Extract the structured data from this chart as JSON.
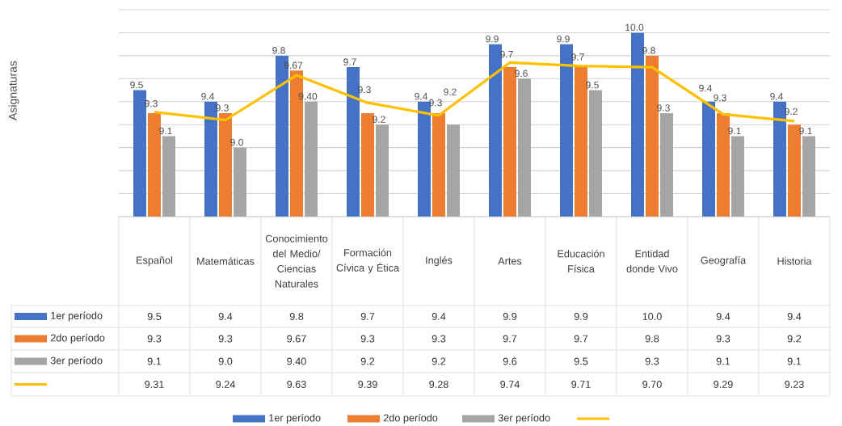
{
  "chart_data": {
    "type": "bar",
    "annotations": [
      "Asignaturas"
    ],
    "categories": [
      "Español",
      "Matemáticas",
      "Conocimiento del Medio/ Ciencias Naturales",
      "Formación Cívica y Ética",
      "Inglés",
      "Artes",
      "Educación Física",
      "Entidad donde Vivo",
      "Geografía",
      "Historia"
    ],
    "series": [
      {
        "name": "1er período",
        "color": "#4472c4",
        "values": [
          9.5,
          9.4,
          9.8,
          9.7,
          9.4,
          9.9,
          9.9,
          10.0,
          9.4,
          9.4
        ],
        "value_labels": [
          "9.5",
          "9.4",
          "9.8",
          "9.7",
          "9.4",
          "9.9",
          "9.9",
          "10.0",
          "9.4",
          "9.4"
        ]
      },
      {
        "name": "2do período",
        "color": "#ed7d31",
        "values": [
          9.3,
          9.3,
          9.67,
          9.3,
          9.3,
          9.7,
          9.7,
          9.8,
          9.3,
          9.2
        ],
        "value_labels": [
          "9.3",
          "9.3",
          "9.67",
          "9.3",
          "9.3",
          "9.7",
          "9.7",
          "9.8",
          "9.3",
          "9.2"
        ]
      },
      {
        "name": "3er período",
        "color": "#a5a5a5",
        "values": [
          9.1,
          9.0,
          9.4,
          9.2,
          9.2,
          9.6,
          9.5,
          9.3,
          9.1,
          9.1
        ],
        "value_labels": [
          "9.1",
          "9.0",
          "9.40",
          "9.2",
          "9.2",
          "9.6",
          "9.5",
          "9.3",
          "9.1",
          "9.1"
        ]
      },
      {
        "type": "line",
        "color": "#ffc000",
        "values": [
          9.31,
          9.24,
          9.63,
          9.39,
          9.28,
          9.74,
          9.71,
          9.7,
          9.29,
          9.23
        ],
        "value_labels": [
          "9.31",
          "9.24",
          "9.63",
          "9.39",
          "9.28",
          "9.74",
          "9.71",
          "9.70",
          "9.29",
          "9.23"
        ]
      }
    ],
    "ylim": [
      8.4,
      10.2
    ],
    "yticks": [
      {
        "value": 8.4,
        "label": null
      },
      {
        "value": 8.6,
        "label": null
      },
      {
        "value": 8.8,
        "label": null
      },
      {
        "value": 9.0,
        "label": null
      },
      {
        "value": 9.2,
        "label": null
      },
      {
        "value": 9.4,
        "label": null
      },
      {
        "value": 9.6,
        "label": null
      },
      {
        "value": 9.8,
        "label": null
      },
      {
        "value": 10.0,
        "label": null
      },
      {
        "value": 10.2,
        "label": null
      }
    ],
    "tick_labels": "x",
    "grid": "y",
    "legend": "bottom"
  }
}
